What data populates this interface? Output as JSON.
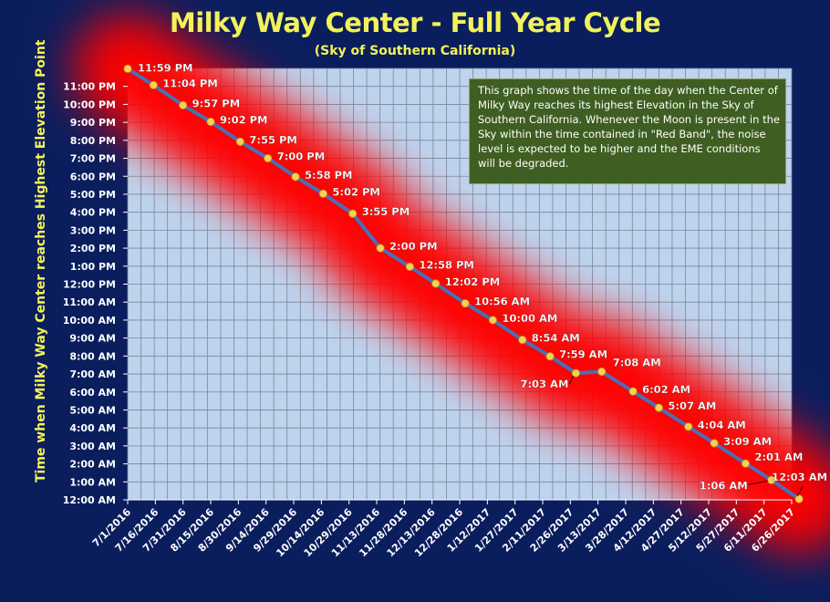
{
  "title": "Milky Way Center - Full Year Cycle",
  "subtitle": "(Sky of Southern California)",
  "ylabel": "Time when Milky Way Center  reaches Highest  Elevation Point",
  "note": "This graph shows the time of the day when the Center of Milky Way reaches its highest Elevation in the Sky of Southern California. Whenever the Moon is present in the Sky within the time contained in \"Red Band\", the noise level is expected to be higher and the EME conditions will be degraded.",
  "colors": {
    "background": "#0a1e5e",
    "plot_area": "#bdd3ee",
    "grid": "#7c8796",
    "line": "#4a6fb8",
    "marker": "#f6cf55",
    "band": "#ff0000",
    "title_text": "#f2f25a",
    "note_box": "#3f5e22"
  },
  "chart_data": {
    "type": "line",
    "title": "Milky Way Center - Full Year Cycle",
    "subtitle": "(Sky of Southern California)",
    "xlabel": "",
    "ylabel": "Time when Milky Way Center  reaches Highest  Elevation Point",
    "grid": true,
    "x_ticks": [
      "7/1/2016",
      "7/16/2016",
      "7/31/2016",
      "8/15/2016",
      "8/30/2016",
      "9/14/2016",
      "9/29/2016",
      "10/14/2016",
      "10/29/2016",
      "11/13/2016",
      "11/28/2016",
      "12/13/2016",
      "12/28/2016",
      "1/12/2017",
      "1/27/2017",
      "2/11/2017",
      "2/26/2017",
      "3/13/2017",
      "3/28/2017",
      "4/12/2017",
      "4/27/2017",
      "5/12/2017",
      "5/27/2017",
      "6/11/2017",
      "6/26/2017"
    ],
    "y_ticks": [
      "12:00 AM",
      "1:00 AM",
      "2:00 AM",
      "3:00 AM",
      "4:00 AM",
      "5:00 AM",
      "6:00 AM",
      "7:00 AM",
      "8:00 AM",
      "9:00 AM",
      "10:00 AM",
      "11:00 AM",
      "12:00 PM",
      "1:00 PM",
      "2:00 PM",
      "3:00 PM",
      "4:00 PM",
      "5:00 PM",
      "6:00 PM",
      "7:00 PM",
      "8:00 PM",
      "9:00 PM",
      "10:00 PM",
      "11:00 PM"
    ],
    "ylim_hours": [
      0,
      24
    ],
    "xlim": [
      "7/1/2016",
      "6/26/2017"
    ],
    "series": [
      {
        "points": [
          {
            "x": "7/1/2016",
            "y_hours": 23.98,
            "label": "11:59 PM"
          },
          {
            "x": "7/15/2016",
            "y_hours": 23.07,
            "label": "11:04 PM"
          },
          {
            "x": "7/31/2016",
            "y_hours": 21.95,
            "label": "9:57 PM"
          },
          {
            "x": "8/15/2016",
            "y_hours": 21.03,
            "label": "9:02 PM"
          },
          {
            "x": "8/31/2016",
            "y_hours": 19.92,
            "label": "7:55 PM"
          },
          {
            "x": "9/15/2016",
            "y_hours": 19.0,
            "label": "7:00 PM"
          },
          {
            "x": "9/30/2016",
            "y_hours": 17.97,
            "label": "5:58 PM"
          },
          {
            "x": "10/15/2016",
            "y_hours": 17.03,
            "label": "5:02 PM"
          },
          {
            "x": "10/31/2016",
            "y_hours": 15.92,
            "label": "3:55 PM"
          },
          {
            "x": "11/15/2016",
            "y_hours": 14.0,
            "label": "2:00 PM"
          },
          {
            "x": "12/1/2016",
            "y_hours": 12.97,
            "label": "12:58 PM"
          },
          {
            "x": "12/15/2016",
            "y_hours": 12.03,
            "label": "12:02 PM"
          },
          {
            "x": "12/31/2016",
            "y_hours": 10.93,
            "label": "10:56 AM"
          },
          {
            "x": "1/15/2017",
            "y_hours": 10.0,
            "label": "10:00 AM"
          },
          {
            "x": "1/31/2017",
            "y_hours": 8.9,
            "label": "8:54 AM"
          },
          {
            "x": "2/15/2017",
            "y_hours": 7.98,
            "label": "7:59 AM"
          },
          {
            "x": "3/1/2017",
            "y_hours": 7.05,
            "label": "7:03 AM"
          },
          {
            "x": "3/15/2017",
            "y_hours": 7.13,
            "label": "7:08 AM"
          },
          {
            "x": "4/1/2017",
            "y_hours": 6.03,
            "label": "6:02 AM"
          },
          {
            "x": "4/15/2017",
            "y_hours": 5.12,
            "label": "5:07 AM"
          },
          {
            "x": "5/1/2017",
            "y_hours": 4.07,
            "label": "4:04 AM"
          },
          {
            "x": "5/15/2017",
            "y_hours": 3.15,
            "label": "3:09 AM"
          },
          {
            "x": "6/1/2017",
            "y_hours": 2.02,
            "label": "2:01 AM"
          },
          {
            "x": "6/15/2017",
            "y_hours": 1.1,
            "label": "1:06 AM"
          },
          {
            "x": "6/30/2017",
            "y_hours": 0.05,
            "label": "12:03 AM"
          }
        ]
      }
    ]
  }
}
